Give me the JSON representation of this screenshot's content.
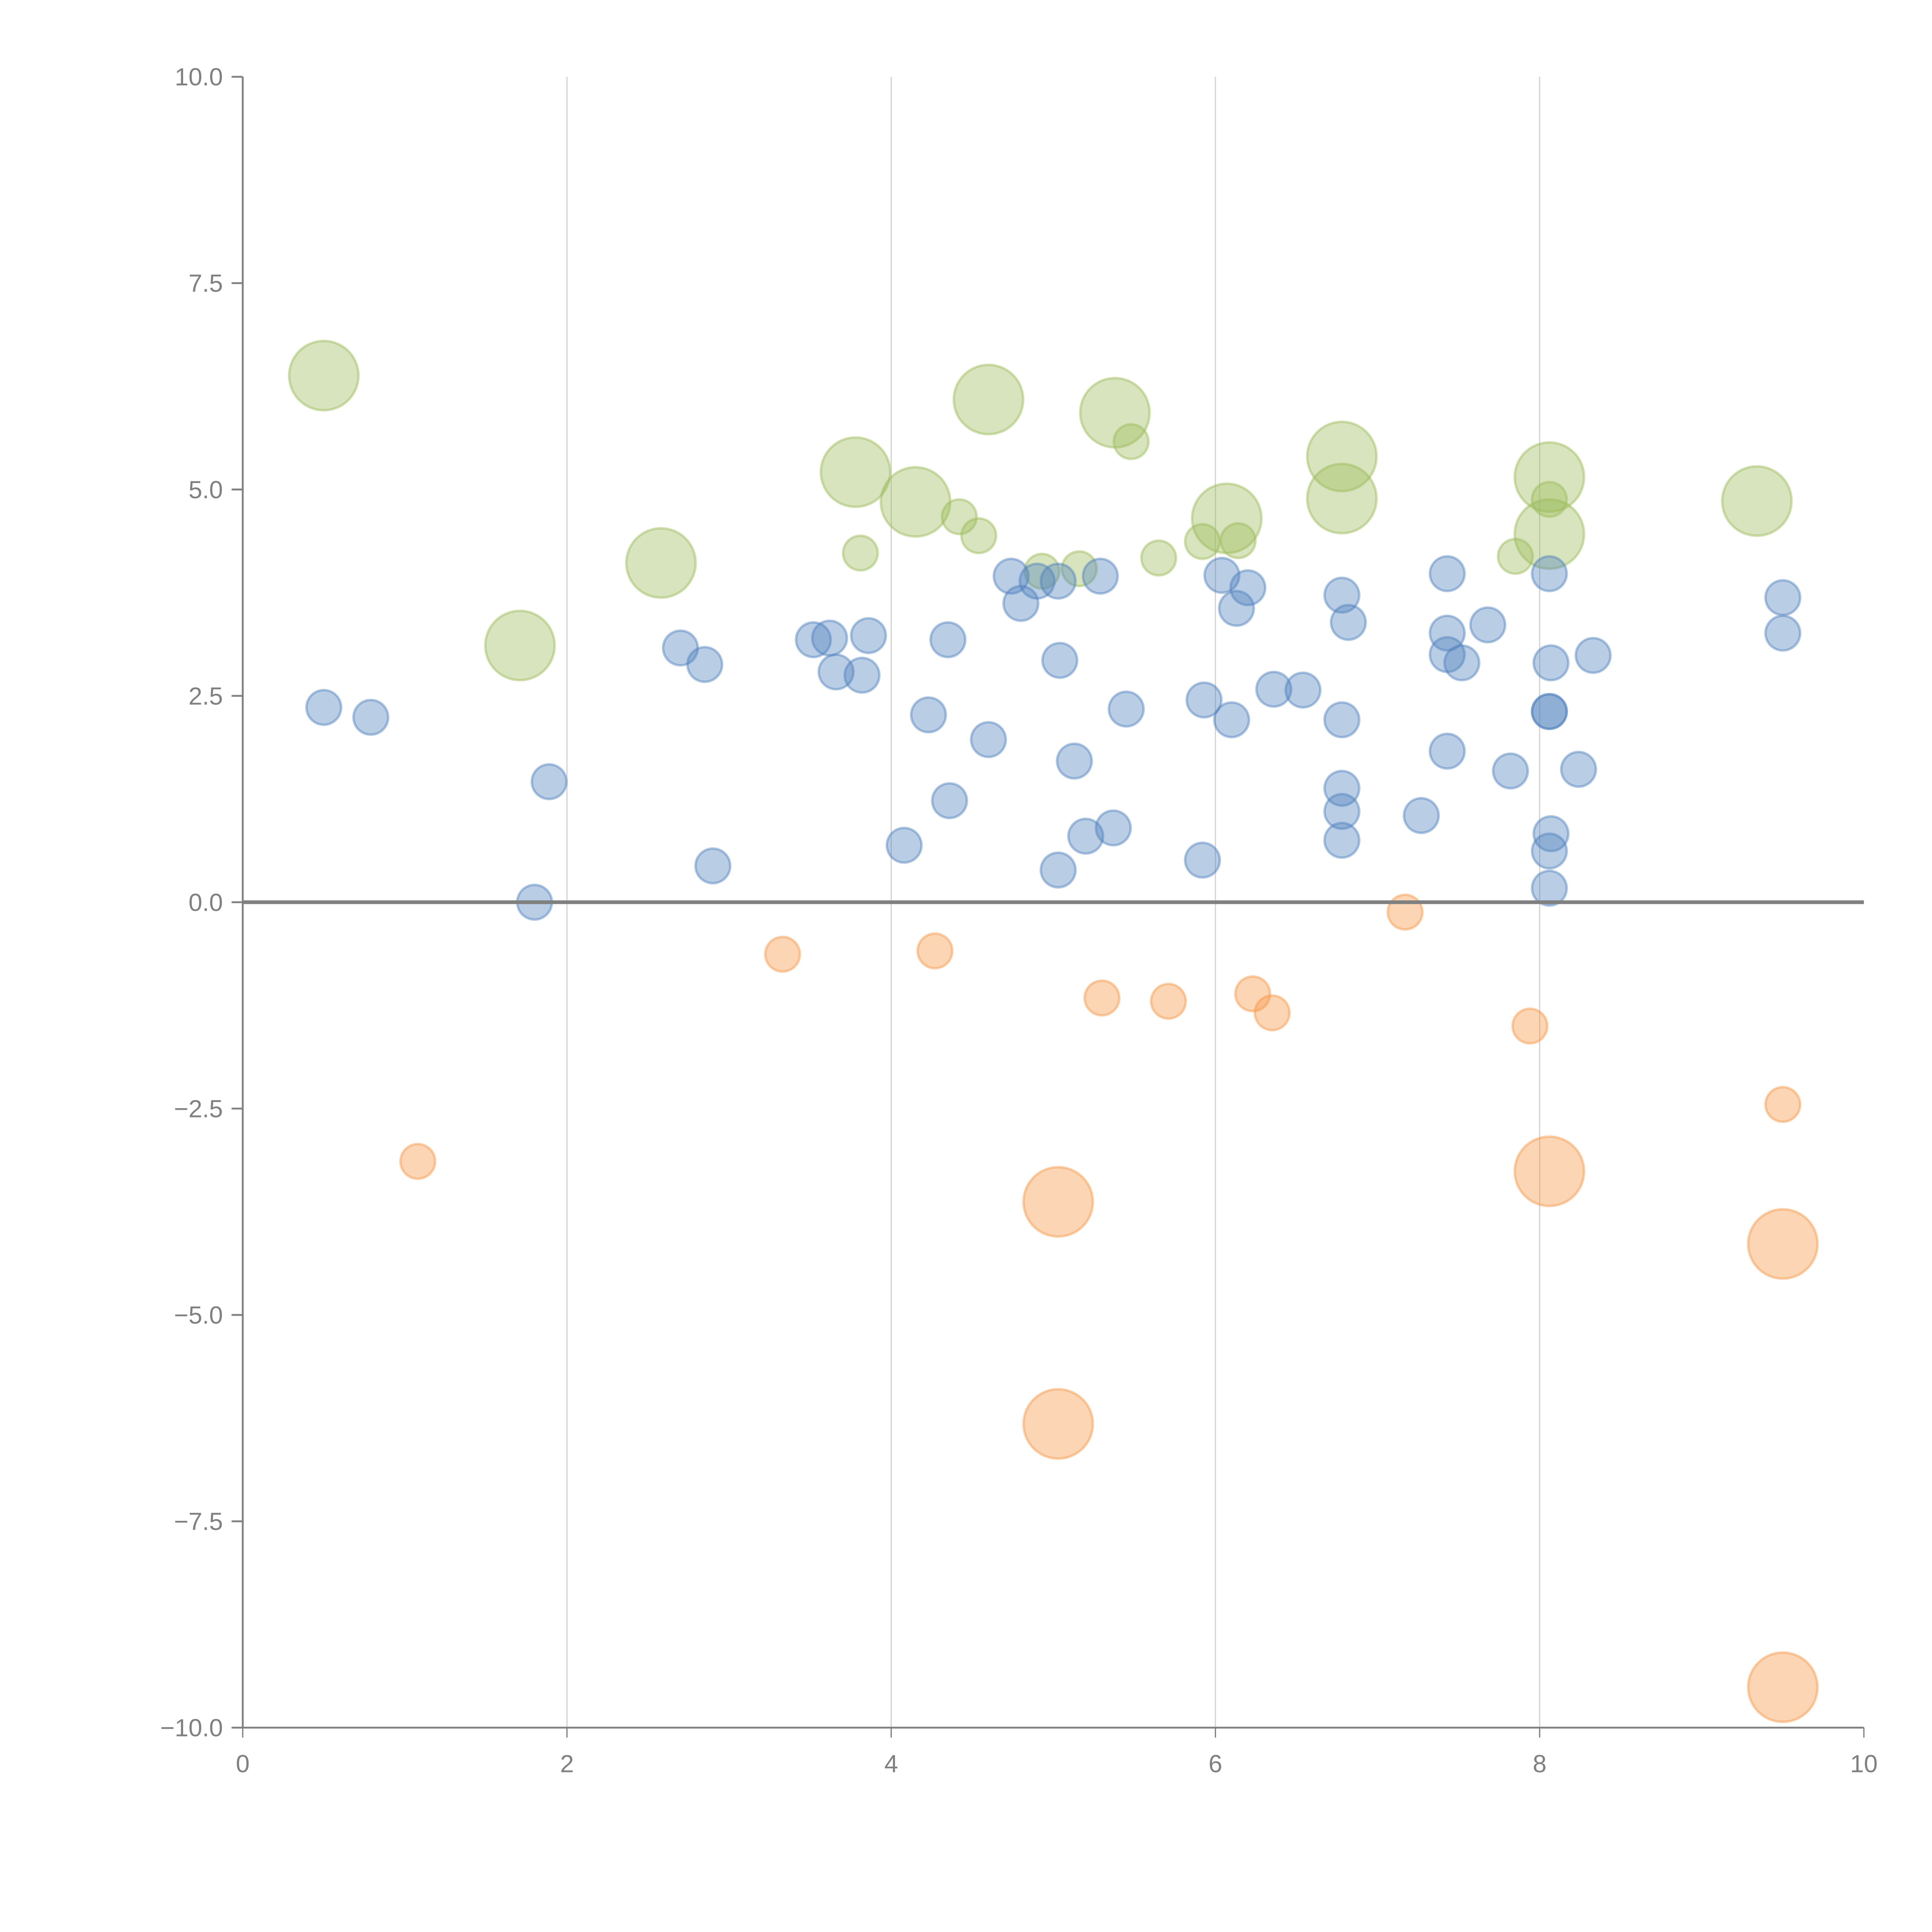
{
  "chart_data": {
    "type": "scatter",
    "title": "",
    "xlabel": "",
    "ylabel": "",
    "xlim": [
      0,
      10
    ],
    "ylim": [
      -10,
      10
    ],
    "x_ticks": [
      "0",
      "2",
      "4",
      "6",
      "8",
      "10"
    ],
    "y_ticks": [
      "10.0",
      "7.5",
      "5.0",
      "2.5",
      "0.0",
      "−2.5",
      "−5.0",
      "−7.5",
      "−10.0"
    ],
    "grid": "vertical",
    "zero_line": true,
    "legend": "none",
    "size_note": "bubble size relative: 1 = small, 4 = large",
    "series": [
      {
        "name": "green",
        "color": "#9bbb59",
        "points": [
          {
            "x": 0.5,
            "y": 6.38,
            "s": 4
          },
          {
            "x": 1.71,
            "y": 3.11,
            "s": 4
          },
          {
            "x": 2.58,
            "y": 4.11,
            "s": 4
          },
          {
            "x": 3.78,
            "y": 5.21,
            "s": 4
          },
          {
            "x": 3.81,
            "y": 4.23,
            "s": 1
          },
          {
            "x": 4.15,
            "y": 4.85,
            "s": 4
          },
          {
            "x": 4.42,
            "y": 4.67,
            "s": 1
          },
          {
            "x": 4.54,
            "y": 4.44,
            "s": 1
          },
          {
            "x": 4.6,
            "y": 6.09,
            "s": 4
          },
          {
            "x": 4.93,
            "y": 4.01,
            "s": 1
          },
          {
            "x": 5.16,
            "y": 4.04,
            "s": 1
          },
          {
            "x": 5.38,
            "y": 5.93,
            "s": 4
          },
          {
            "x": 5.48,
            "y": 5.58,
            "s": 1
          },
          {
            "x": 5.65,
            "y": 4.17,
            "s": 1
          },
          {
            "x": 5.92,
            "y": 4.37,
            "s": 1
          },
          {
            "x": 6.07,
            "y": 4.65,
            "s": 4
          },
          {
            "x": 6.14,
            "y": 4.38,
            "s": 1
          },
          {
            "x": 6.78,
            "y": 5.4,
            "s": 4
          },
          {
            "x": 6.78,
            "y": 4.89,
            "s": 4
          },
          {
            "x": 7.85,
            "y": 4.19,
            "s": 1
          },
          {
            "x": 8.06,
            "y": 5.15,
            "s": 4
          },
          {
            "x": 8.06,
            "y": 4.88,
            "s": 1
          },
          {
            "x": 8.06,
            "y": 4.46,
            "s": 4
          },
          {
            "x": 9.34,
            "y": 4.86,
            "s": 4
          }
        ]
      },
      {
        "name": "blue",
        "color": "#4f81bd",
        "points": [
          {
            "x": 0.5,
            "y": 2.36,
            "s": 1
          },
          {
            "x": 0.79,
            "y": 2.24,
            "s": 1
          },
          {
            "x": 1.89,
            "y": 1.46,
            "s": 1
          },
          {
            "x": 1.8,
            "y": 0.0,
            "s": 1
          },
          {
            "x": 2.7,
            "y": 3.08,
            "s": 1
          },
          {
            "x": 2.85,
            "y": 2.88,
            "s": 1
          },
          {
            "x": 2.9,
            "y": 0.44,
            "s": 1
          },
          {
            "x": 3.52,
            "y": 3.18,
            "s": 1
          },
          {
            "x": 3.62,
            "y": 3.2,
            "s": 1
          },
          {
            "x": 3.66,
            "y": 2.79,
            "s": 1
          },
          {
            "x": 3.82,
            "y": 2.75,
            "s": 1
          },
          {
            "x": 3.86,
            "y": 3.23,
            "s": 1
          },
          {
            "x": 4.08,
            "y": 0.69,
            "s": 1
          },
          {
            "x": 4.23,
            "y": 2.27,
            "s": 1
          },
          {
            "x": 4.35,
            "y": 3.18,
            "s": 1
          },
          {
            "x": 4.36,
            "y": 1.23,
            "s": 1
          },
          {
            "x": 4.6,
            "y": 1.97,
            "s": 1
          },
          {
            "x": 4.74,
            "y": 3.95,
            "s": 1
          },
          {
            "x": 4.8,
            "y": 3.62,
            "s": 1
          },
          {
            "x": 4.9,
            "y": 3.89,
            "s": 1
          },
          {
            "x": 5.03,
            "y": 3.89,
            "s": 1
          },
          {
            "x": 5.04,
            "y": 2.93,
            "s": 1
          },
          {
            "x": 5.03,
            "y": 0.39,
            "s": 1
          },
          {
            "x": 5.13,
            "y": 1.71,
            "s": 1
          },
          {
            "x": 5.2,
            "y": 0.8,
            "s": 1
          },
          {
            "x": 5.29,
            "y": 3.95,
            "s": 1
          },
          {
            "x": 5.37,
            "y": 0.9,
            "s": 1
          },
          {
            "x": 5.45,
            "y": 2.34,
            "s": 1
          },
          {
            "x": 5.93,
            "y": 2.45,
            "s": 1
          },
          {
            "x": 5.92,
            "y": 0.51,
            "s": 1
          },
          {
            "x": 6.04,
            "y": 3.96,
            "s": 1
          },
          {
            "x": 6.1,
            "y": 2.21,
            "s": 1
          },
          {
            "x": 6.13,
            "y": 3.56,
            "s": 1
          },
          {
            "x": 6.2,
            "y": 3.81,
            "s": 1
          },
          {
            "x": 6.36,
            "y": 2.58,
            "s": 1
          },
          {
            "x": 6.54,
            "y": 2.57,
            "s": 1
          },
          {
            "x": 6.78,
            "y": 3.72,
            "s": 1
          },
          {
            "x": 6.82,
            "y": 3.39,
            "s": 1
          },
          {
            "x": 6.78,
            "y": 2.21,
            "s": 1
          },
          {
            "x": 6.78,
            "y": 1.38,
            "s": 1
          },
          {
            "x": 6.78,
            "y": 1.1,
            "s": 1
          },
          {
            "x": 6.78,
            "y": 0.75,
            "s": 1
          },
          {
            "x": 7.27,
            "y": 1.05,
            "s": 1
          },
          {
            "x": 7.43,
            "y": 3.98,
            "s": 1
          },
          {
            "x": 7.43,
            "y": 3.26,
            "s": 1
          },
          {
            "x": 7.43,
            "y": 3.0,
            "s": 1
          },
          {
            "x": 7.52,
            "y": 2.9,
            "s": 1
          },
          {
            "x": 7.43,
            "y": 1.83,
            "s": 1
          },
          {
            "x": 7.68,
            "y": 3.36,
            "s": 1
          },
          {
            "x": 7.82,
            "y": 1.59,
            "s": 1
          },
          {
            "x": 8.06,
            "y": 3.98,
            "s": 1
          },
          {
            "x": 8.07,
            "y": 2.9,
            "s": 1
          },
          {
            "x": 8.06,
            "y": 2.31,
            "s": 1
          },
          {
            "x": 8.06,
            "y": 2.31,
            "s": 1
          },
          {
            "x": 8.07,
            "y": 0.83,
            "s": 1
          },
          {
            "x": 8.06,
            "y": 0.62,
            "s": 1
          },
          {
            "x": 8.06,
            "y": 0.17,
            "s": 1
          },
          {
            "x": 8.24,
            "y": 1.61,
            "s": 1
          },
          {
            "x": 8.33,
            "y": 2.99,
            "s": 1
          },
          {
            "x": 9.5,
            "y": 3.69,
            "s": 1
          },
          {
            "x": 9.5,
            "y": 3.26,
            "s": 1
          }
        ]
      },
      {
        "name": "orange",
        "color": "#f79646",
        "points": [
          {
            "x": 1.08,
            "y": -3.14,
            "s": 1
          },
          {
            "x": 3.33,
            "y": -0.63,
            "s": 1
          },
          {
            "x": 4.27,
            "y": -0.59,
            "s": 1
          },
          {
            "x": 5.3,
            "y": -1.16,
            "s": 1
          },
          {
            "x": 5.71,
            "y": -1.2,
            "s": 1
          },
          {
            "x": 6.23,
            "y": -1.11,
            "s": 1
          },
          {
            "x": 6.35,
            "y": -1.34,
            "s": 1
          },
          {
            "x": 7.17,
            "y": -0.12,
            "s": 1
          },
          {
            "x": 7.94,
            "y": -1.5,
            "s": 1
          },
          {
            "x": 9.5,
            "y": -2.45,
            "s": 1
          },
          {
            "x": 5.03,
            "y": -3.63,
            "s": 4
          },
          {
            "x": 5.03,
            "y": -6.32,
            "s": 4
          },
          {
            "x": 8.06,
            "y": -3.26,
            "s": 4
          },
          {
            "x": 9.5,
            "y": -4.14,
            "s": 4
          },
          {
            "x": 9.5,
            "y": -9.51,
            "s": 4
          }
        ]
      }
    ]
  }
}
